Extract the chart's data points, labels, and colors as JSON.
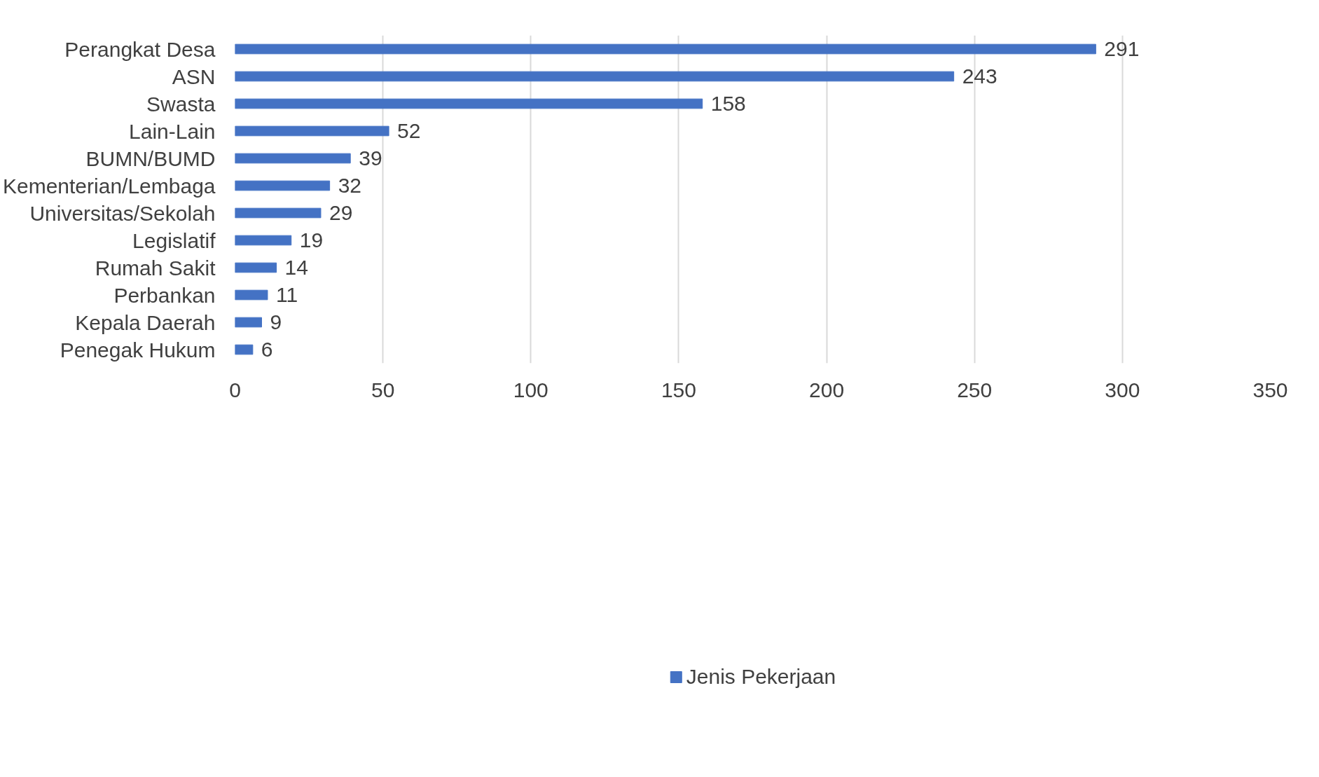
{
  "chart_data": {
    "type": "bar",
    "orientation": "horizontal",
    "categories": [
      "Perangkat Desa",
      "ASN",
      "Swasta",
      "Lain-Lain",
      "BUMN/BUMD",
      "Kementerian/Lembaga",
      "Universitas/Sekolah",
      "Legislatif",
      "Rumah Sakit",
      "Perbankan",
      "Kepala Daerah",
      "Penegak Hukum"
    ],
    "series": [
      {
        "name": "Jenis Pekerjaan",
        "color": "#4472c4",
        "values": [
          291,
          243,
          158,
          52,
          39,
          32,
          29,
          19,
          14,
          11,
          9,
          6
        ]
      }
    ],
    "xlim": [
      0,
      350
    ],
    "xticks": [
      0,
      50,
      100,
      150,
      200,
      250,
      300,
      350
    ],
    "grid": "x",
    "legend": "bottom",
    "data_labels": true
  }
}
